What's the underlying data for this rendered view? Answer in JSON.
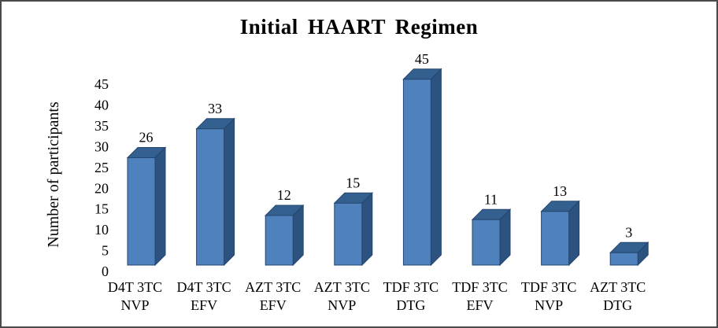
{
  "figure": {
    "title": "Initial HAART Regimen",
    "ylabel": "Number of participants"
  },
  "chart_data": {
    "type": "bar",
    "style": "3d-column",
    "title": "Initial HAART Regimen",
    "xlabel": "",
    "ylabel": "Number of participants",
    "categories": [
      "D4T 3TC NVP",
      "D4T 3TC EFV",
      "AZT 3TC EFV",
      "AZT 3TC NVP",
      "TDF 3TC DTG",
      "TDF 3TC EFV",
      "TDF 3TC NVP",
      "AZT 3TC DTG"
    ],
    "categories_wrapped": [
      [
        "D4T 3TC",
        "NVP"
      ],
      [
        "D4T 3TC",
        "EFV"
      ],
      [
        "AZT 3TC",
        "EFV"
      ],
      [
        "AZT 3TC",
        "NVP"
      ],
      [
        "TDF 3TC",
        "DTG"
      ],
      [
        "TDF 3TC",
        "EFV"
      ],
      [
        "TDF 3TC",
        "NVP"
      ],
      [
        "AZT 3TC",
        "DTG"
      ]
    ],
    "values": [
      26,
      33,
      12,
      15,
      45,
      11,
      13,
      3
    ],
    "data_labels": [
      26,
      33,
      12,
      15,
      45,
      11,
      13,
      3
    ],
    "yticks": [
      0,
      5,
      10,
      15,
      20,
      25,
      30,
      35,
      40,
      45
    ],
    "ylim": [
      0,
      45
    ],
    "grid": false,
    "legend": null,
    "colors": {
      "bar_front": "#4f81bd",
      "bar_top": "#33608f",
      "bar_side": "#2c5280",
      "bar_edge": "#24466e",
      "text": "#000000",
      "background": "#ffffff",
      "frame_border": "#4a4a4a"
    }
  }
}
